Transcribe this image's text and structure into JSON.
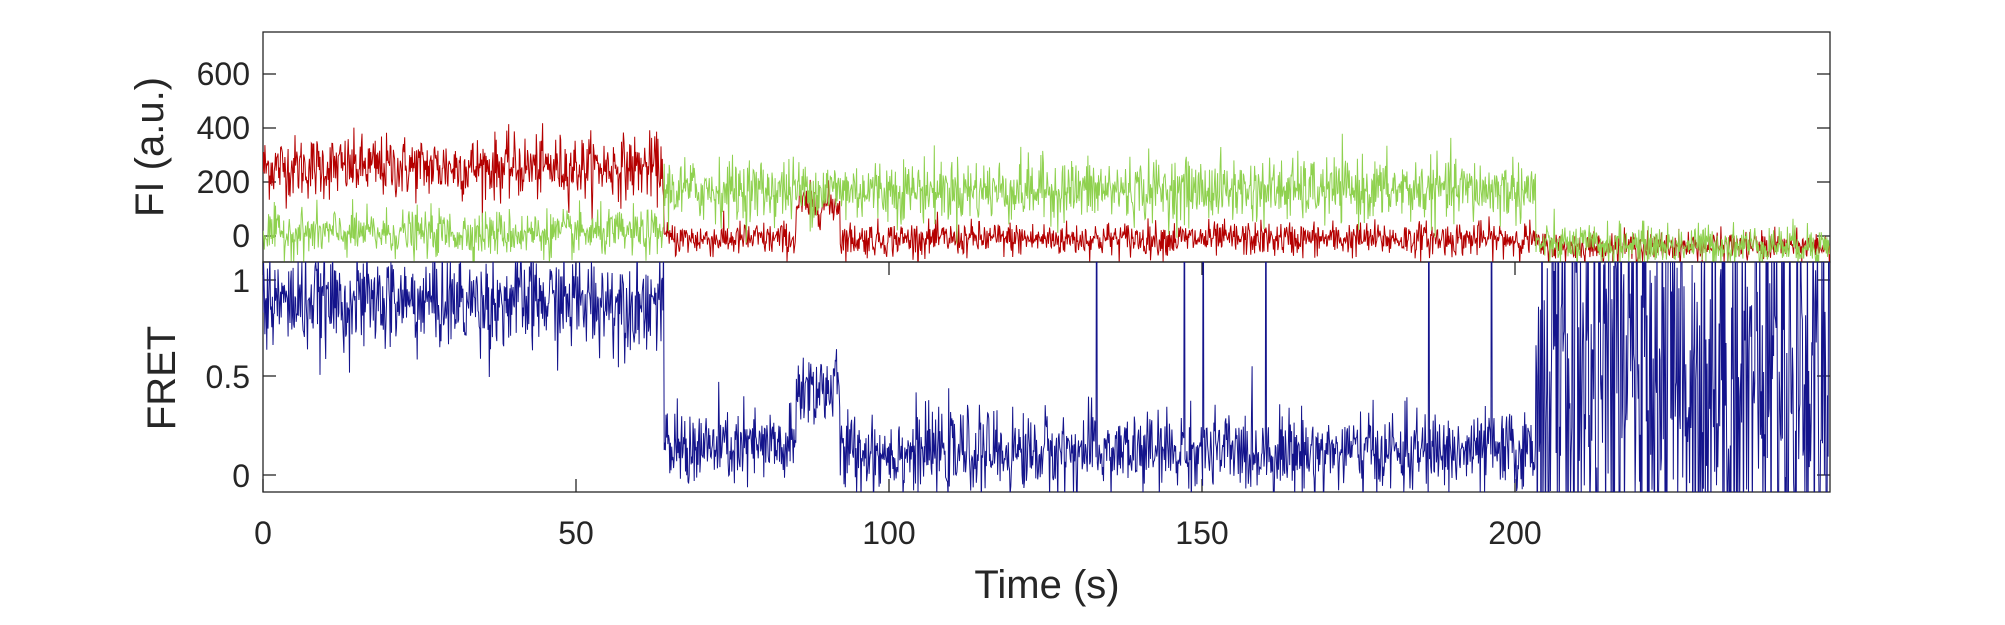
{
  "chart_data": [
    {
      "type": "line",
      "ylabel": "FI (a.u.)",
      "xlim": [
        0,
        250
      ],
      "ylim": [
        -50,
        750
      ],
      "yticks": [
        0,
        200,
        400,
        600
      ],
      "grid": false,
      "legend": "none",
      "series": [
        {
          "color": "#b40000",
          "segments": [
            {
              "t0": 0,
              "t1": 64,
              "mean": 280,
              "noise": 55
            },
            {
              "t0": 64,
              "t1": 85,
              "mean": 30,
              "noise": 30
            },
            {
              "t0": 85,
              "t1": 92,
              "mean": 150,
              "noise": 35
            },
            {
              "t0": 92,
              "t1": 203,
              "mean": 30,
              "noise": 30
            },
            {
              "t0": 203,
              "t1": 250,
              "mean": 5,
              "noise": 25
            }
          ]
        },
        {
          "color": "#8fd14f",
          "segments": [
            {
              "t0": 0,
              "t1": 64,
              "mean": 50,
              "noise": 40
            },
            {
              "t0": 64,
              "t1": 203,
              "mean": 200,
              "noise": 55
            },
            {
              "t0": 203,
              "t1": 250,
              "mean": 10,
              "noise": 35
            }
          ]
        }
      ]
    },
    {
      "type": "line",
      "xlabel": "Time (s)",
      "ylabel": "FRET",
      "xlim": [
        0,
        250
      ],
      "ylim": [
        -0.1,
        1.05
      ],
      "xticks": [
        0,
        50,
        100,
        150,
        200
      ],
      "yticks": [
        0,
        0.5,
        1
      ],
      "yticklabels": [
        "0",
        "0.5",
        "1"
      ],
      "grid": false,
      "legend": "none",
      "series": [
        {
          "color": "#14148c",
          "segments": [
            {
              "t0": 0,
              "t1": 64,
              "mean": 0.85,
              "noise": 0.12
            },
            {
              "t0": 64,
              "t1": 85,
              "mean": 0.12,
              "noise": 0.1
            },
            {
              "t0": 85,
              "t1": 92,
              "mean": 0.42,
              "noise": 0.1
            },
            {
              "t0": 92,
              "t1": 203,
              "mean": 0.1,
              "noise": 0.1
            },
            {
              "t0": 203,
              "t1": 250,
              "mean": 0.5,
              "noise": 0.55
            }
          ],
          "spikes": [
            133,
            147,
            150,
            160,
            186,
            196
          ]
        }
      ]
    }
  ]
}
